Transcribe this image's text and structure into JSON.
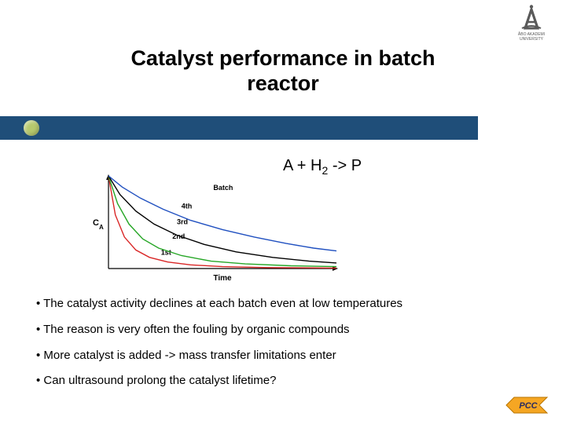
{
  "logo_top": {
    "label1": "ÅBO AKADEMI",
    "label2": "UNIVERSITY",
    "color": "#5a5a5a"
  },
  "title": {
    "line1": "Catalyst performance in batch",
    "line2": "reactor",
    "fontsize": 27,
    "color": "#000000"
  },
  "title_bar": {
    "color": "#1f4e79",
    "dot_color": "#b7c96d"
  },
  "equation": {
    "text_a": "A + H",
    "sub": "2",
    "text_b": " -> P",
    "fontsize": 20
  },
  "chart": {
    "type": "line",
    "xlabel": "Time",
    "ylabel": "C",
    "ylabel_sub": "A",
    "batch_label": "Batch",
    "label_fontsize": 10,
    "axis_color": "#000000",
    "background_color": "#ffffff",
    "xrange": [
      0,
      100
    ],
    "yrange": [
      0,
      100
    ],
    "series": [
      {
        "name": "1st",
        "color": "#d92626",
        "label_x": 23,
        "label_y": 85,
        "points": [
          [
            0,
            0
          ],
          [
            3,
            42
          ],
          [
            7,
            66
          ],
          [
            12,
            80
          ],
          [
            18,
            88
          ],
          [
            26,
            93
          ],
          [
            36,
            96
          ],
          [
            50,
            98
          ],
          [
            70,
            99
          ],
          [
            100,
            99.5
          ]
        ]
      },
      {
        "name": "2nd",
        "color": "#26a626",
        "label_x": 28,
        "label_y": 68,
        "points": [
          [
            0,
            0
          ],
          [
            4,
            30
          ],
          [
            9,
            52
          ],
          [
            15,
            68
          ],
          [
            22,
            78
          ],
          [
            32,
            86
          ],
          [
            45,
            92
          ],
          [
            60,
            95
          ],
          [
            80,
            97
          ],
          [
            100,
            98
          ]
        ]
      },
      {
        "name": "3rd",
        "color": "#000000",
        "label_x": 30,
        "label_y": 52,
        "points": [
          [
            0,
            0
          ],
          [
            5,
            20
          ],
          [
            12,
            38
          ],
          [
            20,
            52
          ],
          [
            30,
            64
          ],
          [
            42,
            74
          ],
          [
            56,
            82
          ],
          [
            72,
            88
          ],
          [
            88,
            92
          ],
          [
            100,
            94
          ]
        ]
      },
      {
        "name": "4th",
        "color": "#2050c0",
        "label_x": 32,
        "label_y": 35,
        "points": [
          [
            0,
            0
          ],
          [
            6,
            12
          ],
          [
            14,
            24
          ],
          [
            24,
            36
          ],
          [
            36,
            48
          ],
          [
            50,
            58
          ],
          [
            64,
            66
          ],
          [
            78,
            73
          ],
          [
            90,
            78
          ],
          [
            100,
            81
          ]
        ]
      }
    ],
    "line_width": 1.4
  },
  "bullets": [
    "• The catalyst activity declines at each batch even at low temperatures",
    "• The reason is very often the fouling by organic compounds",
    "• More catalyst is added -> mass transfer limitations enter",
    "• Can ultrasound prolong the catalyst lifetime?"
  ],
  "logo_bottom": {
    "text": "PCC",
    "fill": "#f5a623",
    "stroke": "#b87400",
    "text_color": "#2a2a60"
  }
}
